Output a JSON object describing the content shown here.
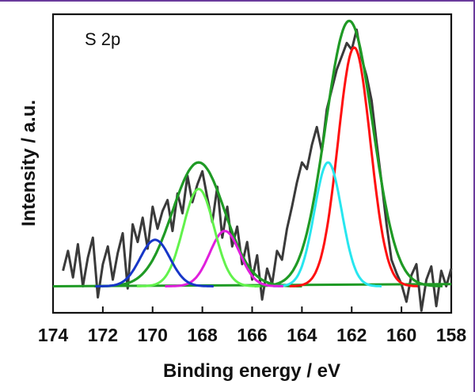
{
  "chart_data": {
    "type": "line",
    "panel_label": "S 2p",
    "xlabel": "Binding energy / eV",
    "ylabel": "Intensity / a.u.",
    "xlim": [
      174,
      158
    ],
    "ylim": [
      -0.1,
      1.25
    ],
    "x_ticks": [
      174,
      172,
      170,
      168,
      166,
      164,
      162,
      160,
      158
    ],
    "x_tick_labels": [
      "174",
      "172",
      "170",
      "168",
      "166",
      "164",
      "162",
      "160",
      "158"
    ],
    "grid": false,
    "legend": "none",
    "raw_data": {
      "color": "#3a3a3a",
      "x": [
        173.6,
        173.4,
        173.2,
        173.0,
        172.8,
        172.6,
        172.4,
        172.2,
        172.0,
        171.8,
        171.6,
        171.4,
        171.2,
        171.0,
        170.8,
        170.6,
        170.4,
        170.2,
        170.0,
        169.8,
        169.6,
        169.4,
        169.2,
        169.0,
        168.8,
        168.6,
        168.4,
        168.2,
        168.0,
        167.8,
        167.6,
        167.4,
        167.2,
        167.0,
        166.8,
        166.6,
        166.4,
        166.2,
        166.0,
        165.8,
        165.6,
        165.4,
        165.2,
        165.0,
        164.8,
        164.6,
        164.4,
        164.2,
        164.0,
        163.8,
        163.6,
        163.4,
        163.2,
        163.0,
        162.8,
        162.6,
        162.4,
        162.2,
        162.0,
        161.8,
        161.6,
        161.4,
        161.2,
        161.0,
        160.8,
        160.6,
        160.4,
        160.2,
        160.0,
        159.8,
        159.6,
        159.4,
        159.2,
        159.0,
        158.8,
        158.6,
        158.4,
        158.2,
        158.0
      ],
      "y": [
        0.09,
        0.18,
        0.06,
        0.21,
        0.02,
        0.15,
        0.24,
        -0.03,
        0.12,
        0.2,
        0.05,
        0.17,
        0.26,
        0.01,
        0.3,
        0.22,
        0.33,
        0.19,
        0.38,
        0.28,
        0.36,
        0.41,
        0.27,
        0.44,
        0.35,
        0.52,
        0.4,
        0.48,
        0.54,
        0.42,
        0.31,
        0.47,
        0.24,
        0.38,
        0.2,
        0.29,
        0.12,
        0.22,
        0.05,
        0.16,
        -0.04,
        0.1,
        0.03,
        0.18,
        0.14,
        0.28,
        0.38,
        0.49,
        0.58,
        0.55,
        0.66,
        0.74,
        0.63,
        0.82,
        0.91,
        1.0,
        1.06,
        1.12,
        1.09,
        1.18,
        1.05,
        0.97,
        0.86,
        0.67,
        0.49,
        0.3,
        0.14,
        0.08,
        0.03,
        -0.05,
        0.07,
        0.12,
        -0.09,
        0.05,
        0.11,
        -0.07,
        0.09,
        0.02,
        0.1
      ]
    },
    "peaks": [
      {
        "color": "#ff1010",
        "center": 161.9,
        "height": 1.08,
        "sigma": 0.65
      },
      {
        "color": "#27e6ef",
        "center": 162.95,
        "height": 0.56,
        "sigma": 0.55
      },
      {
        "color": "#e01fdc",
        "center": 167.1,
        "height": 0.25,
        "sigma": 0.6
      },
      {
        "color": "#62f24c",
        "center": 168.15,
        "height": 0.44,
        "sigma": 0.62
      },
      {
        "color": "#1736c8",
        "center": 169.9,
        "height": 0.21,
        "sigma": 0.6
      }
    ],
    "envelopes": [
      {
        "color": "#1f9a25",
        "center": 162.1,
        "height": 1.2,
        "sigma": 0.95
      },
      {
        "color": "#1f9a25",
        "center": 168.15,
        "height": 0.56,
        "sigma": 1.05
      }
    ],
    "baseline": {
      "color": "#1f9a25",
      "y_start": 0.02,
      "y_end": 0.03
    }
  }
}
